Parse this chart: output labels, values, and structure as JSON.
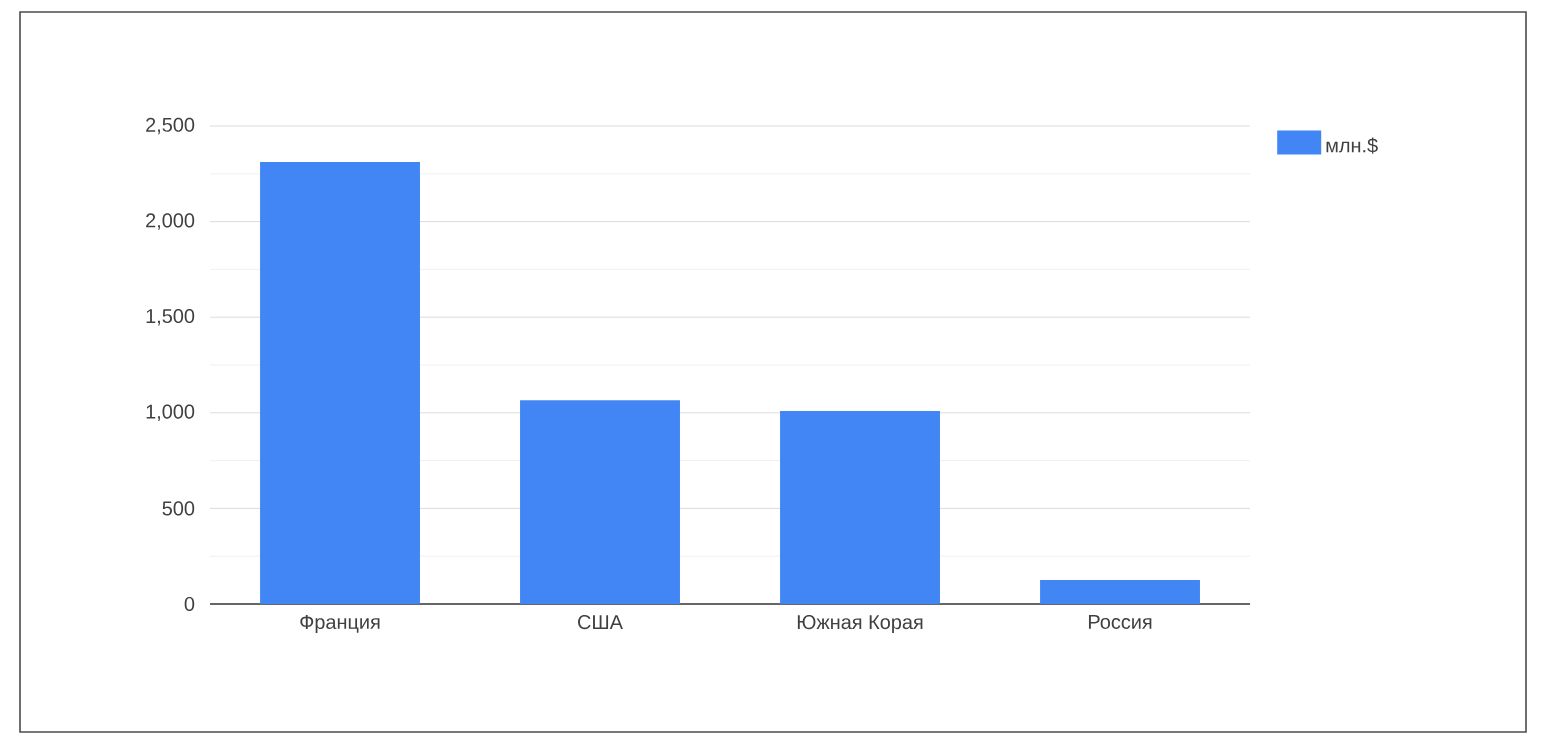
{
  "chart_data": {
    "type": "bar",
    "categories": [
      "Франция",
      "США",
      "Южная Корая",
      "Россия"
    ],
    "series": [
      {
        "name": "млн.$",
        "color": "#4285f4",
        "values": [
          2312,
          1066,
          1010,
          125
        ]
      }
    ],
    "ylim": [
      0,
      2500
    ],
    "yticks": [
      0,
      {
        "value": 250,
        "label": null
      },
      500,
      {
        "value": 750,
        "label": null
      },
      {
        "value": 1000,
        "label": "1,000"
      },
      {
        "value": 1250,
        "label": null
      },
      {
        "value": 1500,
        "label": "1,500"
      },
      {
        "value": 1750,
        "label": null
      },
      {
        "value": 2000,
        "label": "2,000"
      },
      {
        "value": 2250,
        "label": null
      },
      {
        "value": 2500,
        "label": "2,500"
      }
    ],
    "grid": "y",
    "legend": "top right"
  }
}
